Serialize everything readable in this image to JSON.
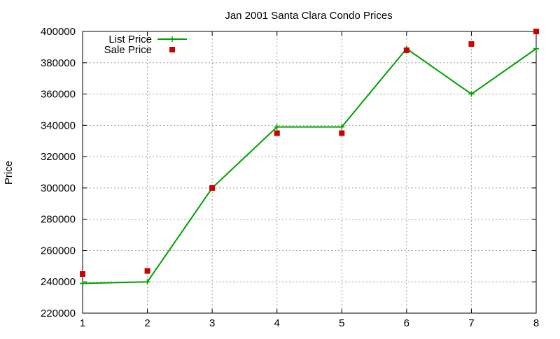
{
  "chart_data": {
    "type": "line",
    "title": "Jan 2001 Santa Clara Condo Prices",
    "xlabel": "",
    "ylabel": "Price",
    "x": [
      1,
      2,
      3,
      4,
      5,
      6,
      7,
      8
    ],
    "xlim": [
      1,
      8
    ],
    "ylim": [
      220000,
      400000
    ],
    "xticks": [
      "1",
      "2",
      "3",
      "4",
      "5",
      "6",
      "7",
      "8"
    ],
    "yticks": [
      "220000",
      "240000",
      "260000",
      "280000",
      "300000",
      "320000",
      "340000",
      "360000",
      "380000",
      "400000"
    ],
    "grid": true,
    "legend_position": "top-left",
    "series": [
      {
        "name": "List Price",
        "style": "line-with-plus-markers",
        "color": "#00a000",
        "values": [
          239000,
          240000,
          300000,
          339000,
          339000,
          389000,
          360000,
          389000
        ]
      },
      {
        "name": "Sale Price",
        "style": "square-markers",
        "color": "#cc0000",
        "values": [
          245000,
          247000,
          300000,
          335000,
          335000,
          388000,
          392000,
          400000
        ]
      }
    ]
  }
}
